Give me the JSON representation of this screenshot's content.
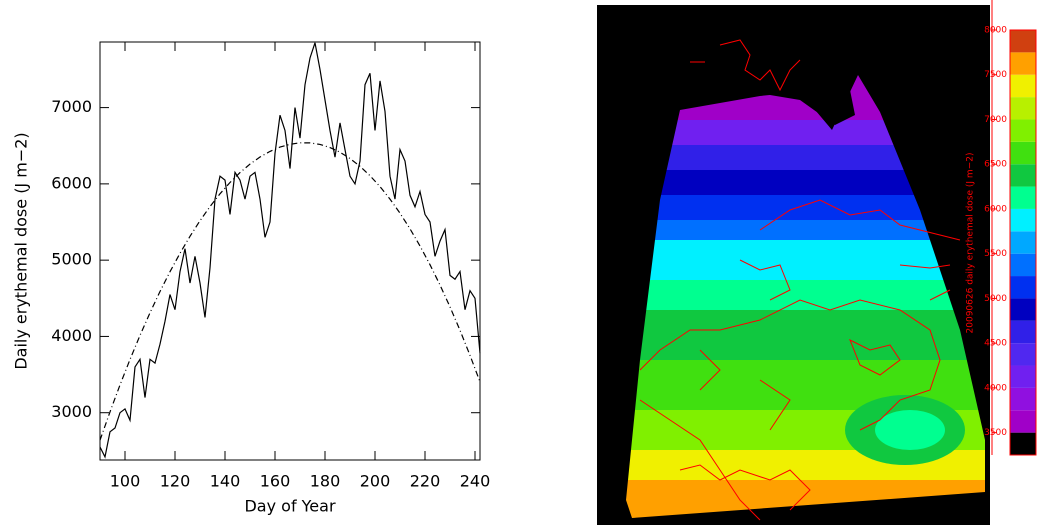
{
  "chart_data": [
    {
      "type": "line",
      "xlabel": "Day of Year",
      "ylabel": "Daily erythemal dose (J m−2)",
      "xlim": [
        90,
        242
      ],
      "ylim": [
        2380,
        7860
      ],
      "xticks": [
        100,
        120,
        140,
        160,
        180,
        200,
        220,
        240
      ],
      "yticks": [
        3000,
        4000,
        5000,
        6000,
        7000
      ],
      "series": [
        {
          "style": "solid",
          "color": "#000000",
          "x": [
            90,
            92,
            94,
            96,
            98,
            100,
            102,
            104,
            106,
            108,
            110,
            112,
            114,
            116,
            118,
            120,
            122,
            124,
            126,
            128,
            130,
            132,
            134,
            136,
            138,
            140,
            142,
            144,
            146,
            148,
            150,
            152,
            154,
            156,
            158,
            160,
            162,
            164,
            166,
            168,
            170,
            172,
            174,
            176,
            178,
            180,
            182,
            184,
            186,
            188,
            190,
            192,
            194,
            196,
            198,
            200,
            202,
            204,
            206,
            208,
            210,
            212,
            214,
            216,
            218,
            220,
            222,
            224,
            226,
            228,
            230,
            232,
            234,
            236,
            238,
            240,
            242
          ],
          "values": [
            2550,
            2420,
            2750,
            2800,
            3000,
            3050,
            2900,
            3600,
            3700,
            3200,
            3700,
            3650,
            3900,
            4200,
            4550,
            4350,
            4850,
            5150,
            4700,
            5050,
            4700,
            4250,
            4900,
            5800,
            6100,
            6050,
            5600,
            6150,
            6050,
            5800,
            6100,
            6150,
            5800,
            5300,
            5500,
            6400,
            6900,
            6700,
            6200,
            7000,
            6600,
            7300,
            7650,
            7850,
            7500,
            7100,
            6700,
            6350,
            6800,
            6450,
            6100,
            6000,
            6300,
            7300,
            7450,
            6700,
            7350,
            6950,
            6100,
            5800,
            6450,
            6300,
            5850,
            5700,
            5900,
            5600,
            5500,
            5050,
            5250,
            5400,
            4800,
            4750,
            4850,
            4350,
            4600,
            4500,
            3780
          ]
        },
        {
          "style": "dashdot",
          "color": "#000000",
          "x": [
            90,
            94,
            98,
            102,
            106,
            110,
            114,
            118,
            122,
            126,
            130,
            134,
            138,
            142,
            146,
            150,
            154,
            158,
            162,
            166,
            170,
            174,
            178,
            182,
            186,
            190,
            194,
            198,
            202,
            206,
            210,
            214,
            218,
            222,
            226,
            230,
            234,
            238,
            242
          ],
          "values": [
            2640,
            3011,
            3364,
            3698,
            4014,
            4310,
            4589,
            4849,
            5090,
            5313,
            5517,
            5702,
            5870,
            6018,
            6148,
            6259,
            6352,
            6426,
            6482,
            6519,
            6538,
            6537,
            6517,
            6476,
            6415,
            6333,
            6230,
            6107,
            5964,
            5800,
            5616,
            5411,
            5186,
            4940,
            4674,
            4387,
            4080,
            3752,
            3404
          ]
        }
      ]
    },
    {
      "type": "colorbar",
      "label": "20090626 daily erythemal dose (J m−2)",
      "ylim": [
        3250,
        8000
      ],
      "yticks": [
        3500,
        4000,
        4500,
        5000,
        5500,
        6000,
        6500,
        7000,
        7500,
        8000
      ],
      "levels": [
        3250,
        3500,
        3750,
        4000,
        4250,
        4500,
        4750,
        5000,
        5250,
        5500,
        5750,
        6000,
        6250,
        6500,
        6750,
        7000,
        7250,
        7500,
        7750
      ],
      "colors": [
        "#000000",
        "#a000c8",
        "#9010e0",
        "#7020f0",
        "#5028f0",
        "#3020e8",
        "#0000c0",
        "#0030f0",
        "#0070ff",
        "#00a8ff",
        "#00f0ff",
        "#00ff90",
        "#10c840",
        "#40e010",
        "#80f000",
        "#b8f000",
        "#f0f000",
        "#ffa000",
        "#d04010"
      ],
      "text_color": "#ff0000"
    }
  ]
}
